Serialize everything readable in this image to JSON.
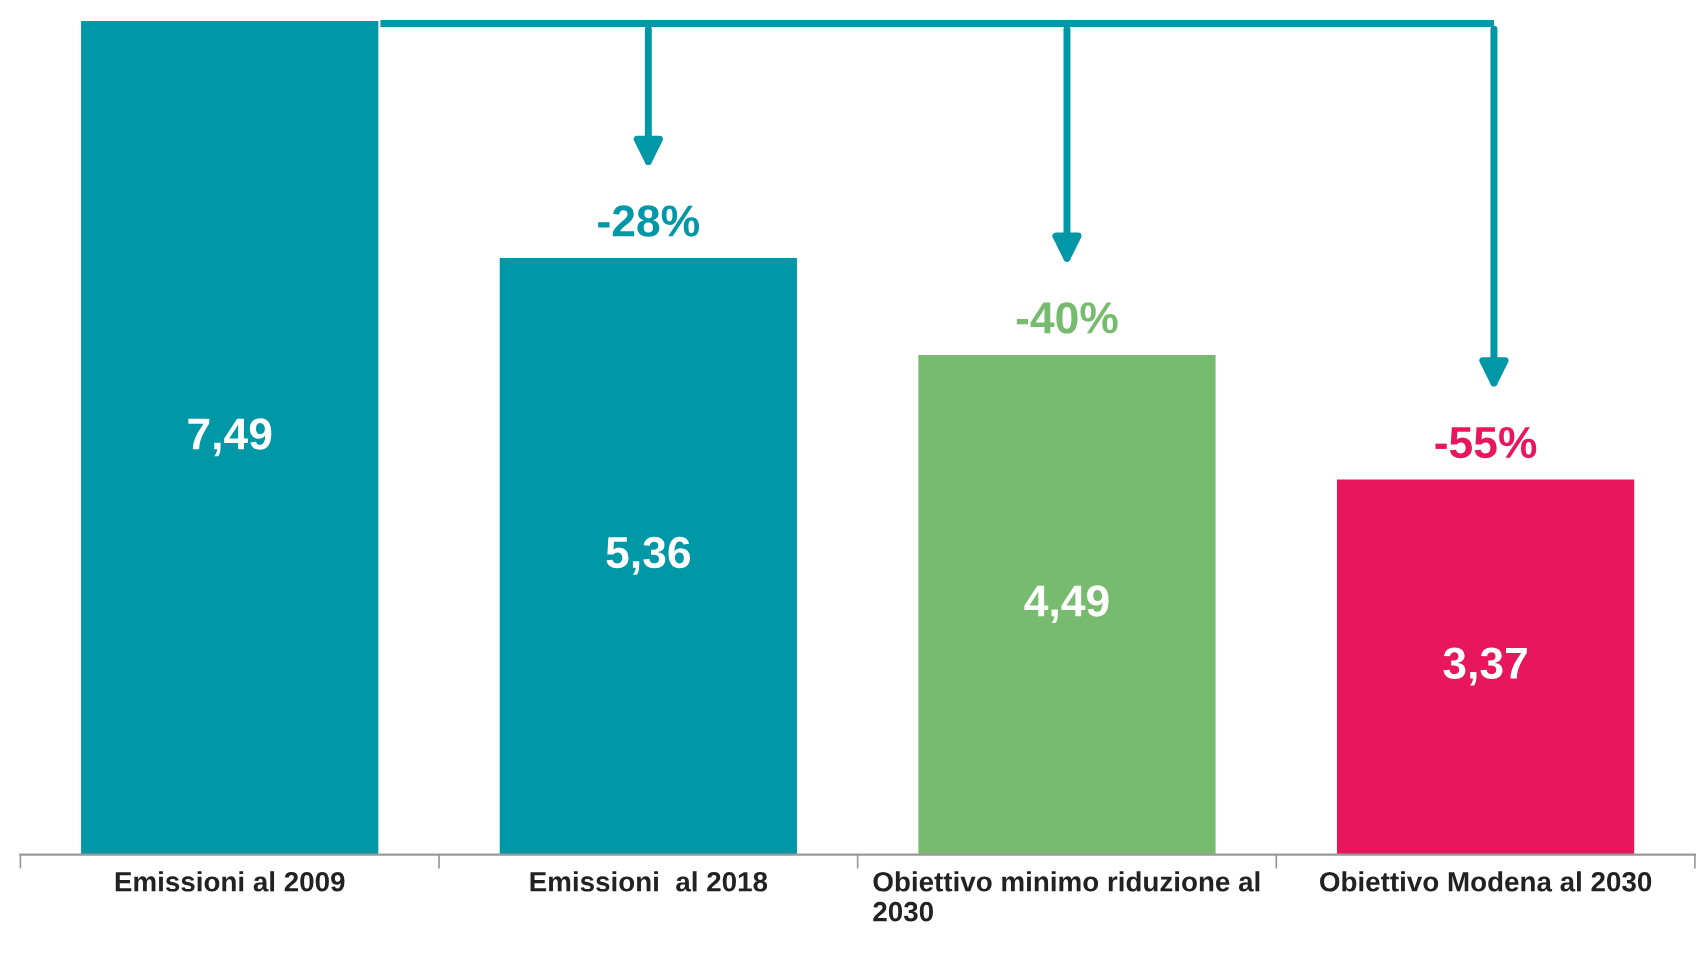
{
  "chart_data": {
    "type": "bar",
    "categories": [
      "Emissioni al 2009",
      "Emissioni  al 2018",
      "Obiettivo minimo riduzione al 2030",
      "Obiettivo Modena al 2030"
    ],
    "values": [
      7.49,
      5.36,
      4.49,
      3.37
    ],
    "colors": [
      "#0097a7",
      "#0097a7",
      "#77bb6e",
      "#e8175d"
    ],
    "value_labels": [
      "7,49",
      "5,36",
      "4,49",
      "3,37"
    ],
    "annotations": [
      {
        "text": "-28%",
        "x": "Emissioni  al 2018",
        "y": 5.36
      },
      {
        "text": "-40%",
        "x": "Obiettivo minimo riduzione al 2030",
        "y": 4.49
      },
      {
        "text": "-55%",
        "x": "Obiettivo Modena al 2030",
        "y": 3.37
      }
    ]
  }
}
